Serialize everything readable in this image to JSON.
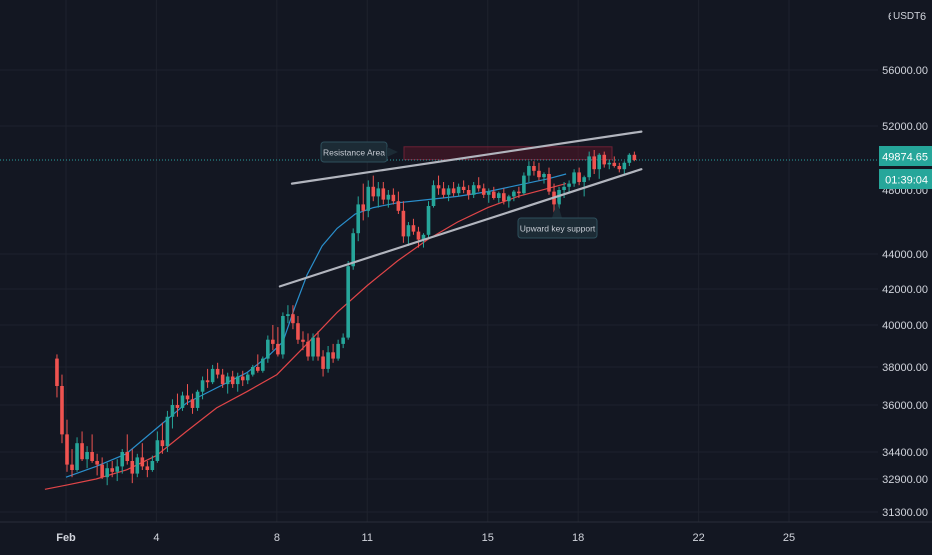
{
  "chart_data": {
    "type": "candlestick",
    "instrument_unit": "USDT",
    "price_axis_ticks": [
      "56000.00",
      "52000.00",
      "44000.00",
      "42000.00",
      "40000.00",
      "38000.00",
      "36000.00",
      "34400.00",
      "32900.00",
      "31300.00"
    ],
    "price_axis_partial": "6",
    "time_axis_ticks": [
      {
        "label": "Feb",
        "day": 1
      },
      {
        "label": "4",
        "day": 4
      },
      {
        "label": "8",
        "day": 8
      },
      {
        "label": "11",
        "day": 11
      },
      {
        "label": "15",
        "day": 15
      },
      {
        "label": "18",
        "day": 18
      },
      {
        "label": "22",
        "day": 22
      },
      {
        "label": "25",
        "day": 25
      }
    ],
    "current_price": {
      "label": "49874.65",
      "value": 49874.65,
      "countdown": "01:39:04",
      "covered_value": 48000
    },
    "annotations": [
      {
        "label": "Resistance Area",
        "zone": [
          49900,
          50700
        ]
      },
      {
        "label": "Upward key support"
      }
    ],
    "channel": {
      "upper": [
        [
          8.5,
          48400
        ],
        [
          20.1,
          51650
        ]
      ],
      "lower": [
        [
          8.1,
          42150
        ],
        [
          20.1,
          49300
        ]
      ]
    },
    "candle_step_hours": 4,
    "candles": [
      [
        38400,
        38600,
        36400,
        37000
      ],
      [
        37000,
        37600,
        34700,
        35000
      ],
      [
        35000,
        35500,
        33300,
        33700
      ],
      [
        33700,
        34500,
        33000,
        33400
      ],
      [
        33400,
        34900,
        33300,
        34700
      ],
      [
        34700,
        35100,
        33900,
        34000
      ],
      [
        34000,
        34600,
        33500,
        34400
      ],
      [
        34400,
        35000,
        33800,
        33900
      ],
      [
        33900,
        34300,
        33100,
        33700
      ],
      [
        33700,
        34100,
        32900,
        33000
      ],
      [
        33000,
        33800,
        32600,
        33500
      ],
      [
        33500,
        33900,
        33000,
        33300
      ],
      [
        33300,
        34000,
        32800,
        33600
      ],
      [
        33600,
        34500,
        33200,
        34400
      ],
      [
        34400,
        35000,
        33700,
        33900
      ],
      [
        33900,
        34500,
        32700,
        33200
      ],
      [
        33200,
        34300,
        33000,
        34100
      ],
      [
        34100,
        34700,
        33400,
        33600
      ],
      [
        33600,
        33900,
        33000,
        33400
      ],
      [
        33400,
        34200,
        33300,
        33900
      ],
      [
        33900,
        35100,
        33800,
        34800
      ],
      [
        34800,
        35400,
        34300,
        34600
      ],
      [
        34600,
        35800,
        34400,
        35600
      ],
      [
        35600,
        36300,
        35200,
        36000
      ],
      [
        36000,
        36600,
        35600,
        35900
      ],
      [
        35900,
        36700,
        35800,
        36500
      ],
      [
        36500,
        37100,
        36000,
        36300
      ],
      [
        36300,
        36600,
        35700,
        35900
      ],
      [
        35900,
        36800,
        35800,
        36700
      ],
      [
        36700,
        37500,
        36300,
        37300
      ],
      [
        37300,
        37900,
        36900,
        37200
      ],
      [
        37200,
        38100,
        37100,
        37900
      ],
      [
        37900,
        38200,
        37400,
        37600
      ],
      [
        37600,
        37900,
        36900,
        37100
      ],
      [
        37100,
        37700,
        36600,
        37500
      ],
      [
        37500,
        37800,
        36900,
        37100
      ],
      [
        37100,
        37700,
        36700,
        37500
      ],
      [
        37500,
        37800,
        37000,
        37300
      ],
      [
        37300,
        37700,
        37100,
        37600
      ],
      [
        37600,
        38100,
        37500,
        38000
      ],
      [
        38000,
        38600,
        37700,
        37800
      ],
      [
        37800,
        38500,
        37700,
        38400
      ],
      [
        38400,
        39500,
        38200,
        39300
      ],
      [
        39300,
        40000,
        38800,
        39100
      ],
      [
        39100,
        39900,
        38500,
        38600
      ],
      [
        38600,
        40700,
        38400,
        40500
      ],
      [
        40500,
        41100,
        40100,
        40600
      ],
      [
        40600,
        41100,
        39800,
        40100
      ],
      [
        40100,
        40500,
        39100,
        39300
      ],
      [
        39300,
        39700,
        38800,
        39200
      ],
      [
        39200,
        39600,
        38300,
        38500
      ],
      [
        38500,
        39600,
        38300,
        39400
      ],
      [
        39400,
        39700,
        38300,
        38500
      ],
      [
        38500,
        38800,
        37500,
        37900
      ],
      [
        37900,
        39000,
        37700,
        38700
      ],
      [
        38700,
        39100,
        38200,
        38400
      ],
      [
        38400,
        39300,
        38300,
        39100
      ],
      [
        39100,
        39600,
        38900,
        39400
      ],
      [
        39400,
        43600,
        39300,
        43300
      ],
      [
        43300,
        45600,
        43100,
        45300
      ],
      [
        45300,
        47600,
        44800,
        47100
      ],
      [
        47100,
        48400,
        46100,
        46700
      ],
      [
        46700,
        48600,
        46300,
        48200
      ],
      [
        48200,
        48900,
        47300,
        47600
      ],
      [
        47600,
        48500,
        46900,
        48100
      ],
      [
        48100,
        48500,
        47100,
        47400
      ],
      [
        47400,
        48000,
        46900,
        47700
      ],
      [
        47700,
        48100,
        47100,
        47300
      ],
      [
        47300,
        47900,
        46500,
        46700
      ],
      [
        46700,
        47300,
        44700,
        45100
      ],
      [
        45100,
        46000,
        44500,
        45800
      ],
      [
        45800,
        46200,
        45200,
        45400
      ],
      [
        45400,
        45700,
        44400,
        44900
      ],
      [
        44900,
        45300,
        44400,
        45200
      ],
      [
        45200,
        47300,
        45000,
        47000
      ],
      [
        47000,
        48600,
        46900,
        48300
      ],
      [
        48300,
        48900,
        47700,
        48100
      ],
      [
        48100,
        48500,
        47500,
        47700
      ],
      [
        47700,
        48300,
        47300,
        48100
      ],
      [
        48100,
        48500,
        47600,
        47800
      ],
      [
        47800,
        48400,
        47600,
        48200
      ],
      [
        48200,
        48600,
        47800,
        48000
      ],
      [
        48000,
        48300,
        47400,
        47700
      ],
      [
        47700,
        48500,
        47500,
        48300
      ],
      [
        48300,
        48800,
        47900,
        48100
      ],
      [
        48100,
        48400,
        47500,
        47700
      ],
      [
        47700,
        48100,
        47200,
        47900
      ],
      [
        47900,
        48200,
        47400,
        47500
      ],
      [
        47500,
        47900,
        47200,
        47800
      ],
      [
        47800,
        48100,
        47100,
        47300
      ],
      [
        47300,
        47700,
        46900,
        47600
      ],
      [
        47600,
        48000,
        47300,
        47900
      ],
      [
        47900,
        48200,
        47500,
        47800
      ],
      [
        47800,
        49100,
        47700,
        48900
      ],
      [
        48900,
        49800,
        48500,
        49500
      ],
      [
        49500,
        49800,
        48900,
        49200
      ],
      [
        49200,
        49700,
        48600,
        48800
      ],
      [
        48800,
        49100,
        48400,
        49000
      ],
      [
        49000,
        49400,
        47700,
        47900
      ],
      [
        47900,
        48400,
        46600,
        47100
      ],
      [
        47100,
        48200,
        46800,
        48000
      ],
      [
        48000,
        48500,
        47500,
        48200
      ],
      [
        48200,
        48600,
        47800,
        48400
      ],
      [
        48400,
        49300,
        48200,
        49100
      ],
      [
        49100,
        49400,
        48300,
        48500
      ],
      [
        48500,
        48900,
        47600,
        48800
      ],
      [
        48800,
        50400,
        48600,
        50100
      ],
      [
        50100,
        50500,
        49000,
        49300
      ],
      [
        49300,
        50300,
        48700,
        50200
      ],
      [
        50200,
        50400,
        49400,
        49600
      ],
      [
        49600,
        49900,
        49300,
        49700
      ],
      [
        49700,
        50100,
        49400,
        49500
      ],
      [
        49500,
        49700,
        49100,
        49300
      ],
      [
        49300,
        49800,
        49000,
        49700
      ],
      [
        49700,
        50300,
        49500,
        50200
      ],
      [
        50200,
        50400,
        49800,
        49874.65
      ]
    ],
    "moving_averages": [
      {
        "color": "#2a8fcc",
        "points": [
          [
            1.0,
            33000
          ],
          [
            2.0,
            33600
          ],
          [
            3.0,
            34300
          ],
          [
            4.0,
            35200
          ],
          [
            5.0,
            36100
          ],
          [
            6.0,
            36900
          ],
          [
            7.0,
            37700
          ],
          [
            7.7,
            38500
          ],
          [
            8.2,
            39200
          ],
          [
            8.6,
            41000
          ],
          [
            9.0,
            42800
          ],
          [
            9.5,
            44500
          ],
          [
            10.0,
            45600
          ],
          [
            10.6,
            46500
          ],
          [
            11.2,
            46900
          ],
          [
            12.0,
            47200
          ],
          [
            13.0,
            47400
          ],
          [
            14.0,
            47600
          ],
          [
            15.0,
            47900
          ],
          [
            16.0,
            48300
          ],
          [
            17.0,
            48700
          ],
          [
            17.6,
            49000
          ]
        ]
      },
      {
        "color": "#e04548",
        "points": [
          [
            0.3,
            32400
          ],
          [
            1.0,
            32600
          ],
          [
            2.0,
            32900
          ],
          [
            3.0,
            33400
          ],
          [
            4.0,
            34200
          ],
          [
            5.0,
            35100
          ],
          [
            6.0,
            35900
          ],
          [
            7.0,
            36700
          ],
          [
            8.0,
            37600
          ],
          [
            9.0,
            39100
          ],
          [
            10.0,
            40700
          ],
          [
            11.0,
            42200
          ],
          [
            12.0,
            43600
          ],
          [
            13.0,
            44900
          ],
          [
            14.0,
            46000
          ],
          [
            15.0,
            46900
          ],
          [
            16.0,
            47600
          ],
          [
            17.0,
            48100
          ],
          [
            17.6,
            48400
          ]
        ]
      }
    ]
  }
}
